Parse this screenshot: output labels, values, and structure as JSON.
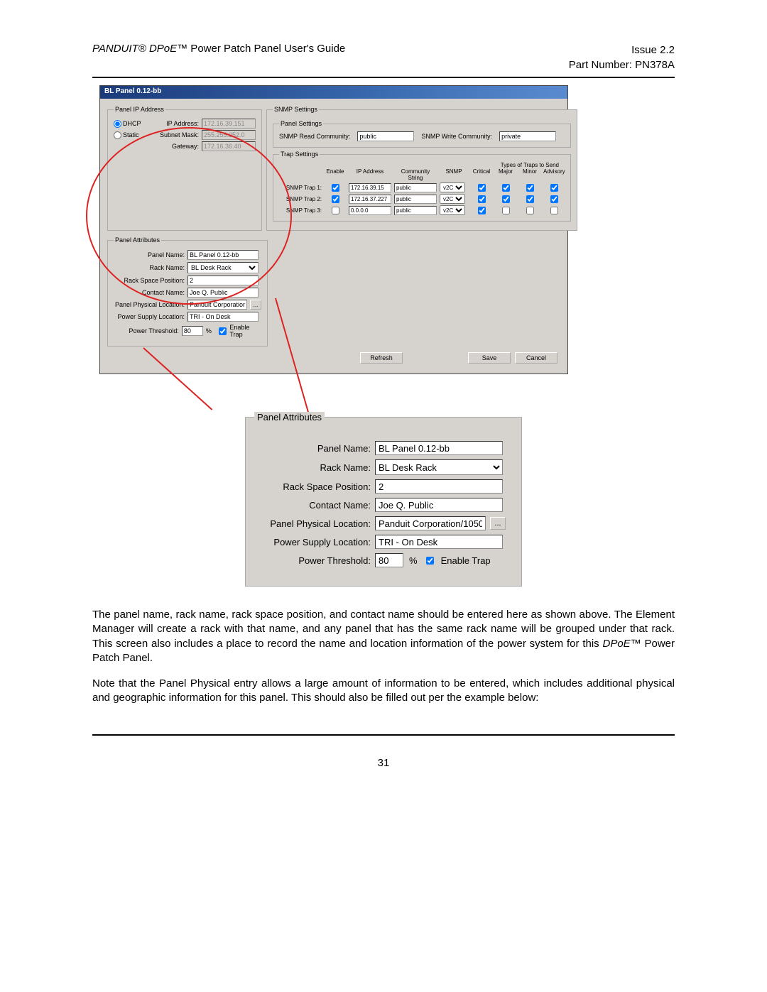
{
  "doc": {
    "header_left_italic": "PANDUIT® DPoE™",
    "header_left_norm": " Power Patch Panel User's Guide",
    "issue": "Issue 2.2",
    "part_number": "Part Number: PN378A",
    "page_number": "31",
    "para1": "The panel name, rack name, rack space position, and contact name should be entered here as shown above. The Element Manager will create a rack with that name, and any panel that has the same rack name will be grouped under that rack. This screen also includes a place to record the name and location information of the power system for this ",
    "para1_em": "DPoE™",
    "para1_tail": " Power Patch Panel.",
    "para2": "Note that the Panel Physical entry allows a large amount of information to be entered, which includes additional physical and geographic information for this panel. This should also be filled out per the example below:"
  },
  "dialog": {
    "title": "BL Panel 0.12-bb",
    "panel_ip_legend": "Panel IP Address",
    "dhcp": "DHCP",
    "static": "Static",
    "ip_label": "IP Address:",
    "ip_value": "172.16.39.151",
    "mask_label": "Subnet Mask:",
    "mask_value": "255.255.252.0",
    "gw_label": "Gateway:",
    "gw_value": "172.16.36.40",
    "snmp_legend": "SNMP Settings",
    "panel_settings_legend": "Panel Settings",
    "read_comm_label": "SNMP Read Community:",
    "read_comm": "public",
    "write_comm_label": "SNMP Write Community:",
    "write_comm": "private",
    "trap_legend": "Trap Settings",
    "trap_types_header": "Types of Traps to Send",
    "col_enable": "Enable",
    "col_ip": "IP Address",
    "col_comm": "Community String",
    "col_snmp": "SNMP",
    "col_critical": "Critical",
    "col_major": "Major",
    "col_minor": "Minor",
    "col_advisory": "Advisory",
    "traps": [
      {
        "label": "SNMP Trap 1:",
        "enabled": true,
        "ip": "172.16.39.15",
        "comm": "public",
        "ver": "v2C",
        "critical": true,
        "major": true,
        "minor": true,
        "advisory": true
      },
      {
        "label": "SNMP Trap 2:",
        "enabled": true,
        "ip": "172.16.37.227",
        "comm": "public",
        "ver": "v2C",
        "critical": true,
        "major": true,
        "minor": true,
        "advisory": true
      },
      {
        "label": "SNMP Trap 3:",
        "enabled": false,
        "ip": "0.0.0.0",
        "comm": "public",
        "ver": "v2C",
        "critical": true,
        "major": false,
        "minor": false,
        "advisory": false
      }
    ],
    "attrs_legend": "Panel Attributes",
    "panel_name_label": "Panel Name:",
    "panel_name": "BL Panel 0.12-bb",
    "rack_name_label": "Rack Name:",
    "rack_name": "BL Desk Rack",
    "rack_pos_label": "Rack Space Position:",
    "rack_pos": "2",
    "contact_label": "Contact Name:",
    "contact": "Joe Q. Public",
    "phys_label": "Panel Physical Location:",
    "phys": "Panduit Corporation/1050",
    "psu_label": "Power Supply Location:",
    "psu": "TRI - On Desk",
    "thresh_label": "Power Threshold:",
    "thresh": "80",
    "pct": "%",
    "enable_trap_label": "Enable Trap",
    "ellipsis_btn": "...",
    "refresh_btn": "Refresh",
    "save_btn": "Save",
    "cancel_btn": "Cancel"
  },
  "enlarge": {
    "legend": "Panel Attributes",
    "panel_name_label": "Panel Name:",
    "panel_name": "BL Panel 0.12-bb",
    "rack_name_label": "Rack Name:",
    "rack_name": "BL Desk Rack",
    "rack_pos_label": "Rack Space Position:",
    "rack_pos": "2",
    "contact_label": "Contact Name:",
    "contact": "Joe Q. Public",
    "phys_label": "Panel Physical Location:",
    "phys": "Panduit Corporation/1050",
    "psu_label": "Power Supply Location:",
    "psu": "TRI - On Desk",
    "thresh_label": "Power Threshold:",
    "thresh": "80",
    "pct": "%",
    "enable_trap_label": "Enable Trap",
    "ellipsis_btn": "..."
  }
}
